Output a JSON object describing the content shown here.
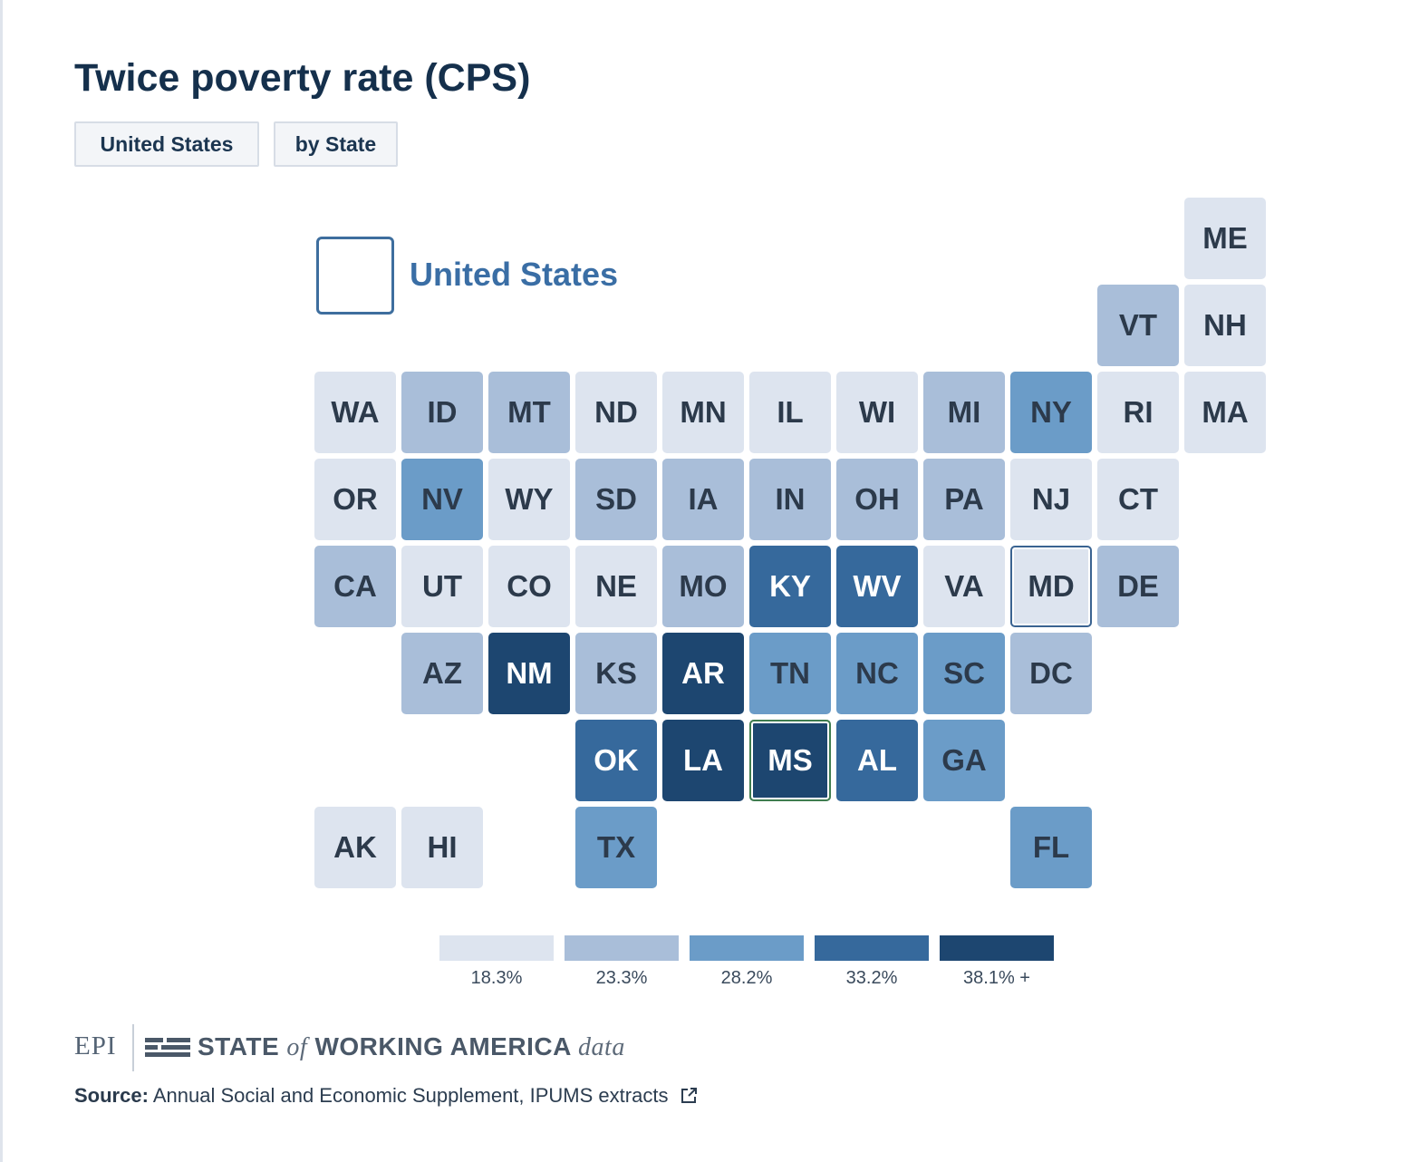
{
  "title": "Twice poverty rate (CPS)",
  "tabs": [
    "United States",
    "by State"
  ],
  "selection_label": "United States",
  "chart_data": {
    "type": "tile-grid-map",
    "title": "Twice poverty rate (CPS)",
    "legend": {
      "bins": [
        "18.3%",
        "23.3%",
        "28.2%",
        "33.2%",
        "38.1% +"
      ],
      "colors": [
        "#dde4ef",
        "#a9bed9",
        "#6b9cc8",
        "#36699c",
        "#1d4670"
      ]
    },
    "states": [
      {
        "abbr": "ME",
        "row": 0,
        "col": 10,
        "bin": 0
      },
      {
        "abbr": "VT",
        "row": 1,
        "col": 9,
        "bin": 1
      },
      {
        "abbr": "NH",
        "row": 1,
        "col": 10,
        "bin": 0
      },
      {
        "abbr": "WA",
        "row": 2,
        "col": 0,
        "bin": 0
      },
      {
        "abbr": "ID",
        "row": 2,
        "col": 1,
        "bin": 1
      },
      {
        "abbr": "MT",
        "row": 2,
        "col": 2,
        "bin": 1
      },
      {
        "abbr": "ND",
        "row": 2,
        "col": 3,
        "bin": 0
      },
      {
        "abbr": "MN",
        "row": 2,
        "col": 4,
        "bin": 0
      },
      {
        "abbr": "IL",
        "row": 2,
        "col": 5,
        "bin": 0
      },
      {
        "abbr": "WI",
        "row": 2,
        "col": 6,
        "bin": 0
      },
      {
        "abbr": "MI",
        "row": 2,
        "col": 7,
        "bin": 1
      },
      {
        "abbr": "NY",
        "row": 2,
        "col": 8,
        "bin": 2
      },
      {
        "abbr": "RI",
        "row": 2,
        "col": 9,
        "bin": 0
      },
      {
        "abbr": "MA",
        "row": 2,
        "col": 10,
        "bin": 0
      },
      {
        "abbr": "OR",
        "row": 3,
        "col": 0,
        "bin": 0
      },
      {
        "abbr": "NV",
        "row": 3,
        "col": 1,
        "bin": 2
      },
      {
        "abbr": "WY",
        "row": 3,
        "col": 2,
        "bin": 0
      },
      {
        "abbr": "SD",
        "row": 3,
        "col": 3,
        "bin": 1
      },
      {
        "abbr": "IA",
        "row": 3,
        "col": 4,
        "bin": 1
      },
      {
        "abbr": "IN",
        "row": 3,
        "col": 5,
        "bin": 1
      },
      {
        "abbr": "OH",
        "row": 3,
        "col": 6,
        "bin": 1
      },
      {
        "abbr": "PA",
        "row": 3,
        "col": 7,
        "bin": 1
      },
      {
        "abbr": "NJ",
        "row": 3,
        "col": 8,
        "bin": 0
      },
      {
        "abbr": "CT",
        "row": 3,
        "col": 9,
        "bin": 0
      },
      {
        "abbr": "CA",
        "row": 4,
        "col": 0,
        "bin": 1
      },
      {
        "abbr": "UT",
        "row": 4,
        "col": 1,
        "bin": 0
      },
      {
        "abbr": "CO",
        "row": 4,
        "col": 2,
        "bin": 0
      },
      {
        "abbr": "NE",
        "row": 4,
        "col": 3,
        "bin": 0
      },
      {
        "abbr": "MO",
        "row": 4,
        "col": 4,
        "bin": 1
      },
      {
        "abbr": "KY",
        "row": 4,
        "col": 5,
        "bin": 3
      },
      {
        "abbr": "WV",
        "row": 4,
        "col": 6,
        "bin": 3
      },
      {
        "abbr": "VA",
        "row": 4,
        "col": 7,
        "bin": 0
      },
      {
        "abbr": "MD",
        "row": 4,
        "col": 8,
        "bin": 0,
        "outline": "blue"
      },
      {
        "abbr": "DE",
        "row": 4,
        "col": 9,
        "bin": 1
      },
      {
        "abbr": "AZ",
        "row": 5,
        "col": 1,
        "bin": 1
      },
      {
        "abbr": "NM",
        "row": 5,
        "col": 2,
        "bin": 4
      },
      {
        "abbr": "KS",
        "row": 5,
        "col": 3,
        "bin": 1
      },
      {
        "abbr": "AR",
        "row": 5,
        "col": 4,
        "bin": 4
      },
      {
        "abbr": "TN",
        "row": 5,
        "col": 5,
        "bin": 2
      },
      {
        "abbr": "NC",
        "row": 5,
        "col": 6,
        "bin": 2
      },
      {
        "abbr": "SC",
        "row": 5,
        "col": 7,
        "bin": 2
      },
      {
        "abbr": "DC",
        "row": 5,
        "col": 8,
        "bin": 1
      },
      {
        "abbr": "OK",
        "row": 6,
        "col": 3,
        "bin": 3
      },
      {
        "abbr": "LA",
        "row": 6,
        "col": 4,
        "bin": 4
      },
      {
        "abbr": "MS",
        "row": 6,
        "col": 5,
        "bin": 4,
        "outline": "green"
      },
      {
        "abbr": "AL",
        "row": 6,
        "col": 6,
        "bin": 3
      },
      {
        "abbr": "GA",
        "row": 6,
        "col": 7,
        "bin": 2
      },
      {
        "abbr": "AK",
        "row": 7,
        "col": 0,
        "bin": 0
      },
      {
        "abbr": "HI",
        "row": 7,
        "col": 1,
        "bin": 0
      },
      {
        "abbr": "TX",
        "row": 7,
        "col": 3,
        "bin": 2
      },
      {
        "abbr": "FL",
        "row": 7,
        "col": 8,
        "bin": 2
      }
    ]
  },
  "footer": {
    "epi": "EPI",
    "brand_state": "STATE",
    "brand_of": "of",
    "brand_working": "WORKING AMERICA",
    "brand_data": "data",
    "source_label": "Source:",
    "source_text": "Annual Social and Economic Supplement, IPUMS extracts"
  }
}
